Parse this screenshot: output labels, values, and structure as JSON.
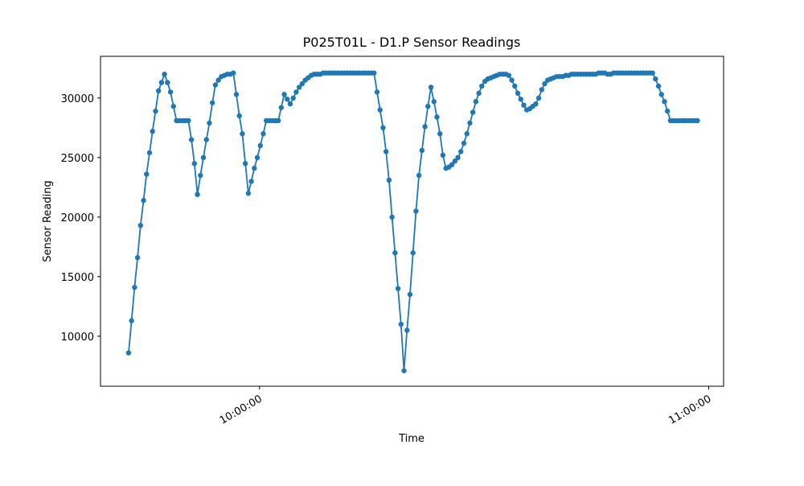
{
  "chart_data": {
    "type": "line",
    "title": "P025T01L - D1.P Sensor Readings",
    "x_label": "Time",
    "y_label": "Sensor Reading",
    "color": "#1f77b4",
    "markers": true,
    "grid": false,
    "xlim": [
      "09:38:45",
      "11:02:00"
    ],
    "xticks": [
      "10:00:00",
      "11:00:00"
    ],
    "ylim": [
      5800,
      33500
    ],
    "yticks": [
      10000,
      15000,
      20000,
      25000,
      30000
    ],
    "x": [
      "09:42:30",
      "09:42:54",
      "09:43:18",
      "09:43:42",
      "09:44:06",
      "09:44:30",
      "09:44:54",
      "09:45:18",
      "09:45:42",
      "09:46:06",
      "09:46:30",
      "09:46:54",
      "09:47:18",
      "09:47:42",
      "09:48:06",
      "09:48:30",
      "09:48:54",
      "09:49:18",
      "09:49:42",
      "09:50:06",
      "09:50:30",
      "09:50:54",
      "09:51:18",
      "09:51:42",
      "09:52:06",
      "09:52:30",
      "09:52:54",
      "09:53:18",
      "09:53:42",
      "09:54:06",
      "09:54:30",
      "09:54:54",
      "09:55:18",
      "09:55:42",
      "09:56:06",
      "09:56:30",
      "09:56:54",
      "09:57:18",
      "09:57:42",
      "09:58:06",
      "09:58:30",
      "09:58:54",
      "09:59:18",
      "09:59:42",
      "10:00:06",
      "10:00:30",
      "10:00:54",
      "10:01:18",
      "10:01:42",
      "10:02:06",
      "10:02:30",
      "10:02:54",
      "10:03:18",
      "10:03:42",
      "10:04:06",
      "10:04:30",
      "10:04:54",
      "10:05:18",
      "10:05:42",
      "10:06:06",
      "10:06:30",
      "10:06:54",
      "10:07:18",
      "10:07:42",
      "10:08:06",
      "10:08:30",
      "10:08:54",
      "10:09:18",
      "10:09:42",
      "10:10:06",
      "10:10:30",
      "10:10:54",
      "10:11:18",
      "10:11:42",
      "10:12:06",
      "10:12:30",
      "10:12:54",
      "10:13:18",
      "10:13:42",
      "10:14:06",
      "10:14:30",
      "10:14:54",
      "10:15:18",
      "10:15:42",
      "10:16:06",
      "10:16:30",
      "10:16:54",
      "10:17:18",
      "10:17:42",
      "10:18:06",
      "10:18:30",
      "10:18:54",
      "10:19:18",
      "10:19:42",
      "10:20:06",
      "10:20:30",
      "10:20:54",
      "10:21:18",
      "10:21:42",
      "10:22:06",
      "10:22:30",
      "10:22:54",
      "10:23:18",
      "10:23:42",
      "10:24:06",
      "10:24:30",
      "10:24:54",
      "10:25:18",
      "10:25:42",
      "10:26:06",
      "10:26:30",
      "10:26:54",
      "10:27:18",
      "10:27:42",
      "10:28:06",
      "10:28:30",
      "10:28:54",
      "10:29:18",
      "10:29:42",
      "10:30:06",
      "10:30:30",
      "10:30:54",
      "10:31:18",
      "10:31:42",
      "10:32:06",
      "10:32:30",
      "10:32:54",
      "10:33:18",
      "10:33:42",
      "10:34:06",
      "10:34:30",
      "10:34:54",
      "10:35:18",
      "10:35:42",
      "10:36:06",
      "10:36:30",
      "10:36:54",
      "10:37:18",
      "10:37:42",
      "10:38:06",
      "10:38:30",
      "10:38:54",
      "10:39:18",
      "10:39:42",
      "10:40:06",
      "10:40:30",
      "10:40:54",
      "10:41:18",
      "10:41:42",
      "10:42:06",
      "10:42:30",
      "10:42:54",
      "10:43:18",
      "10:43:42",
      "10:44:06",
      "10:44:30",
      "10:44:54",
      "10:45:18",
      "10:45:42",
      "10:46:06",
      "10:46:30",
      "10:46:54",
      "10:47:18",
      "10:47:42",
      "10:48:06",
      "10:48:30",
      "10:48:54",
      "10:49:18",
      "10:49:42",
      "10:50:06",
      "10:50:30",
      "10:50:54",
      "10:51:18",
      "10:51:42",
      "10:52:06",
      "10:52:30",
      "10:52:54",
      "10:53:18",
      "10:53:42",
      "10:54:06",
      "10:54:30",
      "10:54:54",
      "10:55:18",
      "10:55:42",
      "10:56:06",
      "10:56:30",
      "10:56:54",
      "10:57:18",
      "10:57:42",
      "10:58:06",
      "10:58:30"
    ],
    "values": [
      8600,
      11300,
      14100,
      16600,
      19300,
      21400,
      23600,
      25400,
      27200,
      28900,
      30600,
      31300,
      32000,
      31300,
      30500,
      29300,
      28100,
      28100,
      28100,
      28100,
      28100,
      26500,
      24500,
      21900,
      23500,
      25000,
      26500,
      27900,
      29600,
      31100,
      31500,
      31800,
      31900,
      32000,
      32000,
      32100,
      30300,
      28500,
      27000,
      24500,
      22000,
      23000,
      24100,
      25000,
      26000,
      27000,
      28100,
      28100,
      28100,
      28100,
      28100,
      29200,
      30300,
      29900,
      29500,
      30000,
      30500,
      30900,
      31200,
      31500,
      31700,
      31900,
      32000,
      32000,
      32000,
      32100,
      32100,
      32100,
      32100,
      32100,
      32100,
      32100,
      32100,
      32100,
      32100,
      32100,
      32100,
      32100,
      32100,
      32100,
      32100,
      32100,
      32100,
      30500,
      29000,
      27500,
      25500,
      23100,
      20000,
      17000,
      14000,
      11000,
      7100,
      10500,
      13500,
      17000,
      20500,
      23500,
      25600,
      27600,
      29300,
      30900,
      29700,
      28400,
      27000,
      25200,
      24100,
      24200,
      24400,
      24700,
      25000,
      25500,
      26200,
      27000,
      27900,
      28800,
      29700,
      30400,
      31000,
      31400,
      31600,
      31700,
      31800,
      31900,
      32000,
      32000,
      32000,
      31900,
      31500,
      31000,
      30400,
      29900,
      29400,
      29000,
      29100,
      29300,
      29500,
      30000,
      30700,
      31200,
      31500,
      31600,
      31700,
      31800,
      31800,
      31800,
      31900,
      31900,
      32000,
      32000,
      32000,
      32000,
      32000,
      32000,
      32000,
      32000,
      32000,
      32100,
      32100,
      32100,
      32000,
      32000,
      32100,
      32100,
      32100,
      32100,
      32100,
      32100,
      32100,
      32100,
      32100,
      32100,
      32100,
      32100,
      32100,
      32100,
      31600,
      31000,
      30300,
      29700,
      28900,
      28100,
      28100,
      28100,
      28100,
      28100,
      28100,
      28100,
      28100,
      28100,
      28100
    ]
  }
}
